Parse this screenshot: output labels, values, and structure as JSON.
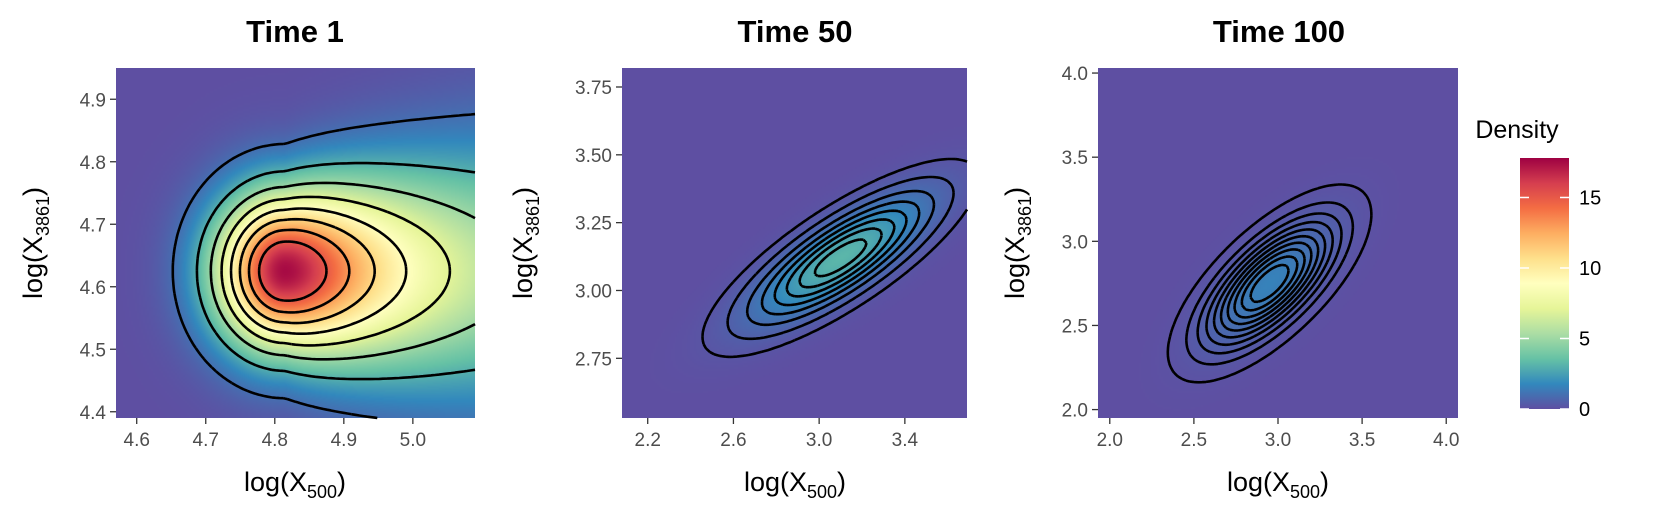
{
  "chart_data": [
    {
      "type": "heatmap",
      "title": "Time 1",
      "xlabel": "log(X",
      "xlabel_sub": "500",
      "xlabel_end": ")",
      "ylabel": "log(X",
      "ylabel_sub": "3861",
      "ylabel_end": ")",
      "xlim": [
        4.57,
        5.09
      ],
      "ylim": [
        4.39,
        4.95
      ],
      "xticks": [
        4.6,
        4.7,
        4.8,
        4.9,
        5.0
      ],
      "xtick_labels": [
        "4.6",
        "4.7",
        "4.8",
        "4.9",
        "5.0"
      ],
      "yticks": [
        4.4,
        4.5,
        4.6,
        4.7,
        4.8,
        4.9
      ],
      "ytick_labels": [
        "4.4",
        "4.5",
        "4.6",
        "4.7",
        "4.8",
        "4.9"
      ],
      "density": {
        "cx": 4.815,
        "cy": 4.625,
        "sx": 0.085,
        "sy": 0.085,
        "peak": 17.5,
        "skew_right": true
      },
      "contour_levels": [
        1,
        3,
        5,
        7,
        9,
        11,
        13,
        15
      ]
    },
    {
      "type": "heatmap",
      "title": "Time 50",
      "xlabel": "log(X",
      "xlabel_sub": "500",
      "xlabel_end": ")",
      "ylabel": "log(X",
      "ylabel_sub": "3861",
      "ylabel_end": ")",
      "xlim": [
        2.08,
        3.69
      ],
      "ylim": [
        2.53,
        3.82
      ],
      "xticks": [
        2.2,
        2.6,
        3.0,
        3.4
      ],
      "xtick_labels": [
        "2.2",
        "2.6",
        "3.0",
        "3.4"
      ],
      "yticks": [
        2.75,
        3.0,
        3.25,
        3.5,
        3.75
      ],
      "ytick_labels": [
        "2.75",
        "3.00",
        "3.25",
        "3.50",
        "3.75"
      ],
      "density": {
        "cx": 3.1,
        "cy": 3.12,
        "rho": 0.8,
        "peak": 3.2
      },
      "contour_levels": [
        0.2,
        0.5,
        0.9,
        1.3,
        1.7,
        2.1,
        2.5,
        2.9
      ]
    },
    {
      "type": "heatmap",
      "title": "Time 100",
      "xlabel": "log(X",
      "xlabel_sub": "500",
      "xlabel_end": ")",
      "ylabel": "log(X",
      "ylabel_sub": "3861",
      "ylabel_end": ")",
      "xlim": [
        1.93,
        4.07
      ],
      "ylim": [
        1.95,
        4.03
      ],
      "xticks": [
        2.0,
        2.5,
        3.0,
        3.5,
        4.0
      ],
      "xtick_labels": [
        "2.0",
        "2.5",
        "3.0",
        "3.5",
        "4.0"
      ],
      "yticks": [
        2.0,
        2.5,
        3.0,
        3.5,
        4.0
      ],
      "ytick_labels": [
        "2.0",
        "2.5",
        "3.0",
        "3.5",
        "4.0"
      ],
      "density": {
        "cx": 2.95,
        "cy": 2.75,
        "rho": 0.7,
        "peak": 1.6
      },
      "contour_levels": [
        0.1,
        0.25,
        0.4,
        0.55,
        0.7,
        0.85,
        1.0,
        1.15,
        1.3,
        1.45
      ]
    }
  ],
  "legend": {
    "title": "Density",
    "ticks": [
      0,
      5,
      10,
      15
    ],
    "tick_labels": [
      "0",
      "5",
      "10",
      "15"
    ],
    "range": [
      0,
      17.8
    ],
    "palette": [
      "#5E4FA2",
      "#3288BD",
      "#66C2A5",
      "#ABDDA4",
      "#E6F598",
      "#FFFFBF",
      "#FEE08B",
      "#FDAE61",
      "#F46D43",
      "#D53E4F",
      "#9E0142"
    ],
    "position": "right"
  }
}
